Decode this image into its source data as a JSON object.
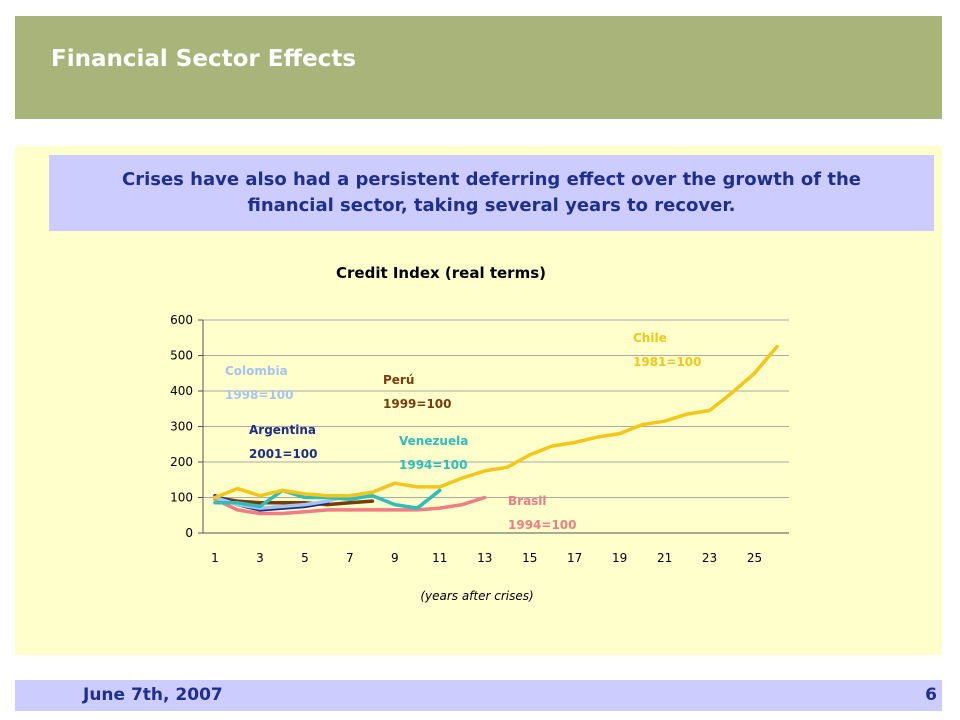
{
  "header": {
    "title": "Financial Sector Effects"
  },
  "callout": {
    "text": "Crises have also had a persistent deferring effect over the growth of the financial sector, taking several years to recover."
  },
  "footer": {
    "date": "June 7th, 2007",
    "page": "6"
  },
  "chart_data": {
    "type": "line",
    "title": "Credit Index (real terms)",
    "xlabel": "(years after crises)",
    "ylabel": "",
    "ylim": [
      0,
      600
    ],
    "xlim": [
      1,
      26
    ],
    "yticks": [
      0,
      100,
      200,
      300,
      400,
      500,
      600
    ],
    "xticks": [
      1,
      3,
      5,
      7,
      9,
      11,
      13,
      15,
      17,
      19,
      21,
      23,
      25
    ],
    "grid": true,
    "series": [
      {
        "name": "Chile",
        "base": "1981=100",
        "color": "#f5c518",
        "x": [
          1,
          2,
          3,
          4,
          5,
          6,
          7,
          8,
          9,
          10,
          11,
          12,
          13,
          14,
          15,
          16,
          17,
          18,
          19,
          20,
          21,
          22,
          23,
          24,
          25,
          26
        ],
        "values": [
          100,
          125,
          105,
          120,
          110,
          105,
          105,
          115,
          140,
          130,
          130,
          155,
          175,
          185,
          220,
          245,
          255,
          270,
          280,
          305,
          315,
          335,
          345,
          395,
          450,
          525
        ]
      },
      {
        "name": "Colombia",
        "base": "1998=100",
        "color": "#a6c4ef",
        "x": [
          1,
          2,
          3,
          4,
          5,
          6,
          7,
          8,
          9
        ],
        "values": [
          100,
          80,
          70,
          75,
          80,
          90,
          105,
          115,
          140
        ]
      },
      {
        "name": "Argentina",
        "base": "2001=100",
        "color": "#1f2d8a",
        "x": [
          1,
          2,
          3,
          4,
          5,
          6
        ],
        "values": [
          105,
          80,
          65,
          70,
          75,
          85
        ]
      },
      {
        "name": "Perú",
        "base": "1999=100",
        "color": "#7a3b0b",
        "x": [
          1,
          2,
          3,
          4,
          5,
          6,
          7,
          8
        ],
        "values": [
          100,
          90,
          85,
          85,
          85,
          80,
          85,
          90
        ]
      },
      {
        "name": "Venezuela",
        "base": "1994=100",
        "color": "#2dbdbd",
        "x": [
          1,
          2,
          3,
          4,
          5,
          6,
          7,
          8,
          9,
          10,
          11
        ],
        "values": [
          85,
          85,
          75,
          120,
          100,
          100,
          95,
          105,
          80,
          70,
          120
        ]
      },
      {
        "name": "Brasil",
        "base": "1994=100",
        "color": "#f07c84",
        "x": [
          1,
          2,
          3,
          4,
          5,
          6,
          7,
          8,
          9,
          10,
          11,
          12,
          13
        ],
        "values": [
          95,
          65,
          55,
          55,
          60,
          65,
          65,
          65,
          65,
          65,
          70,
          80,
          100
        ]
      }
    ]
  }
}
